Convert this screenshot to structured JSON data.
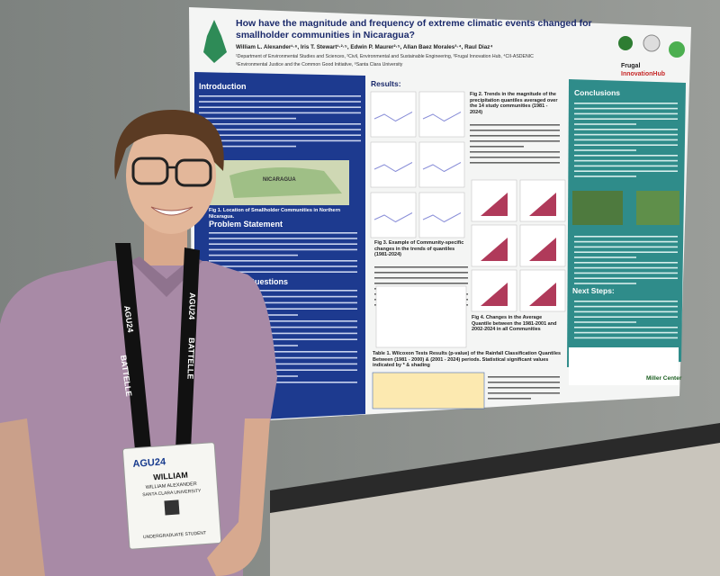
{
  "poster": {
    "title_lines": [
      "How have the magnitude and frequency of extreme climatic events changed for",
      "smallholder communities in Nicaragua?"
    ],
    "authors": "William L. Alexander¹·⁶, Iris T. Stewart¹·²·⁵, Edwin P. Maurer²·⁵, Allan Baez Morales³·⁴, Raul Diaz⁴",
    "affiliations": [
      "¹Department of Environmental Studies and Sciences, ²Civil, Environmental and Sustainable Engineering, ³Frugal Innovation Hub, ⁴CII-ASDENIC",
      "⁵Environmental Justice and the Common Good Initiative, ⁶Santa Clara University"
    ],
    "sections": {
      "introduction": "Introduction",
      "problem": "Problem Statement",
      "questions": "Questions",
      "results": "Results:",
      "conclusions": "Conclusions",
      "next_steps": "Next Steps:"
    },
    "captions": {
      "fig1": "Fig 1. Location of Smallholder Communities in Northern Nicaragua.",
      "fig2": "Fig 2. Trends in the magnitude of the precipitation quantiles averaged over the 14 study communities (1981 - 2024)",
      "fig3": "Fig 3. Example of Community-specific changes in the trends of quantiles (1981-2024)",
      "fig4": "Fig 4. Changes in the Average Quantile between the 1981-2001 and 2002-2024 in all Communities",
      "table1": "Table 1. Wilcoxon Tests Results (p-value) of the Rainfall Classification Quantiles Between (1981 - 2000) & (2001 - 2024) periods. Statistical significant values indicated by * & shading"
    },
    "map_label": "NICARAGUA",
    "logos": {
      "frugal": "Frugal",
      "hub": "InnovationHub",
      "miller": "Miller Center"
    }
  },
  "badge": {
    "event": "AGU24",
    "first_name": "WILLIAM",
    "full_name": "WILLIAM ALEXANDER",
    "affiliation": "SANTA CLARA UNIVERSITY",
    "role": "UNDERGRADUATE STUDENT"
  },
  "lanyard": {
    "event": "AGU24",
    "sponsor": "BATTELLE"
  }
}
